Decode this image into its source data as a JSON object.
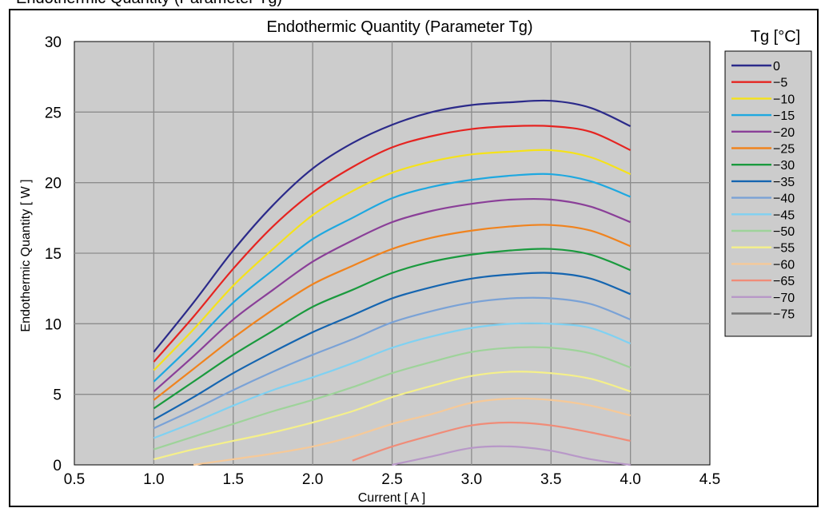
{
  "header": {
    "partial_caption": "Endothermic Quantity (Parameter Tg)"
  },
  "chart_data": {
    "type": "line",
    "title": "Endothermic Quantity (Parameter Tg)",
    "xlabel": "Current [ A ]",
    "ylabel": "Endothermic Quantity [ W ]",
    "xlim": [
      0.5,
      4.5
    ],
    "ylim": [
      0,
      30
    ],
    "xticks": [
      "0.5",
      "1.0",
      "1.5",
      "2.0",
      "2.5",
      "3.0",
      "3.5",
      "4.0",
      "4.5"
    ],
    "yticks": [
      "0",
      "5",
      "10",
      "15",
      "20",
      "25",
      "30"
    ],
    "grid": true,
    "plot_background": "#cccccc",
    "legend_title": "Tg [°C]",
    "legend_position": "right",
    "x": [
      1.0,
      1.25,
      1.5,
      1.75,
      2.0,
      2.25,
      2.5,
      2.75,
      3.0,
      3.25,
      3.5,
      3.75,
      4.0
    ],
    "series": [
      {
        "name": "0",
        "color": "#2b2a8a",
        "values": [
          8.0,
          11.5,
          15.2,
          18.4,
          21.0,
          22.8,
          24.1,
          25.0,
          25.5,
          25.7,
          25.8,
          25.3,
          24.0
        ]
      },
      {
        "name": "−5",
        "color": "#e52421",
        "values": [
          7.3,
          10.5,
          13.9,
          16.9,
          19.3,
          21.1,
          22.5,
          23.3,
          23.8,
          24.0,
          24.0,
          23.6,
          22.3
        ]
      },
      {
        "name": "−10",
        "color": "#f5e21a",
        "values": [
          6.7,
          9.6,
          12.7,
          15.3,
          17.7,
          19.4,
          20.7,
          21.5,
          22.0,
          22.2,
          22.3,
          21.8,
          20.6
        ]
      },
      {
        "name": "−15",
        "color": "#1ea8e0",
        "values": [
          5.9,
          8.6,
          11.5,
          13.8,
          16.0,
          17.5,
          18.9,
          19.7,
          20.2,
          20.5,
          20.6,
          20.1,
          19.0
        ]
      },
      {
        "name": "−20",
        "color": "#8a3f98",
        "values": [
          5.2,
          7.7,
          10.3,
          12.4,
          14.4,
          15.9,
          17.2,
          18.0,
          18.5,
          18.8,
          18.8,
          18.3,
          17.2
        ]
      },
      {
        "name": "−25",
        "color": "#f0831e",
        "values": [
          4.6,
          6.8,
          9.0,
          11.0,
          12.8,
          14.1,
          15.3,
          16.1,
          16.6,
          16.9,
          17.0,
          16.6,
          15.5
        ]
      },
      {
        "name": "−30",
        "color": "#1a9a3e",
        "values": [
          4.0,
          5.9,
          7.8,
          9.5,
          11.2,
          12.4,
          13.6,
          14.4,
          14.9,
          15.2,
          15.3,
          14.9,
          13.8
        ]
      },
      {
        "name": "−35",
        "color": "#1565b0",
        "values": [
          3.2,
          4.8,
          6.5,
          8.0,
          9.4,
          10.6,
          11.8,
          12.6,
          13.2,
          13.5,
          13.6,
          13.2,
          12.1
        ]
      },
      {
        "name": "−40",
        "color": "#7aa2d6",
        "values": [
          2.6,
          3.9,
          5.3,
          6.6,
          7.8,
          8.9,
          10.1,
          10.9,
          11.5,
          11.8,
          11.8,
          11.4,
          10.3
        ]
      },
      {
        "name": "−45",
        "color": "#7fd1f2",
        "values": [
          1.9,
          3.0,
          4.2,
          5.3,
          6.2,
          7.2,
          8.3,
          9.1,
          9.7,
          10.0,
          10.0,
          9.7,
          8.6
        ]
      },
      {
        "name": "−50",
        "color": "#9ed39a",
        "values": [
          1.1,
          2.0,
          2.9,
          3.8,
          4.6,
          5.5,
          6.5,
          7.3,
          8.0,
          8.3,
          8.3,
          7.9,
          6.9
        ]
      },
      {
        "name": "−55",
        "color": "#f5f08a",
        "values": [
          0.4,
          1.1,
          1.7,
          2.3,
          3.0,
          3.8,
          4.8,
          5.6,
          6.3,
          6.6,
          6.5,
          6.1,
          5.2
        ]
      },
      {
        "name": "−60",
        "color": "#f6c998",
        "values": [
          null,
          0.0,
          0.4,
          0.8,
          1.3,
          2.0,
          2.9,
          3.6,
          4.4,
          4.7,
          4.6,
          4.2,
          3.5
        ]
      },
      {
        "name": "−65",
        "color": "#f08c78",
        "values": [
          null,
          null,
          null,
          null,
          null,
          0.3,
          1.3,
          2.1,
          2.8,
          3.0,
          2.8,
          2.3,
          1.7
        ]
      },
      {
        "name": "−70",
        "color": "#b898c8",
        "values": [
          null,
          null,
          null,
          null,
          null,
          null,
          0.0,
          0.6,
          1.2,
          1.3,
          1.0,
          0.4,
          0.0
        ]
      },
      {
        "name": "−75",
        "color": "#777777",
        "values": [
          null,
          null,
          null,
          null,
          null,
          null,
          null,
          null,
          null,
          null,
          null,
          null,
          null
        ]
      }
    ]
  }
}
